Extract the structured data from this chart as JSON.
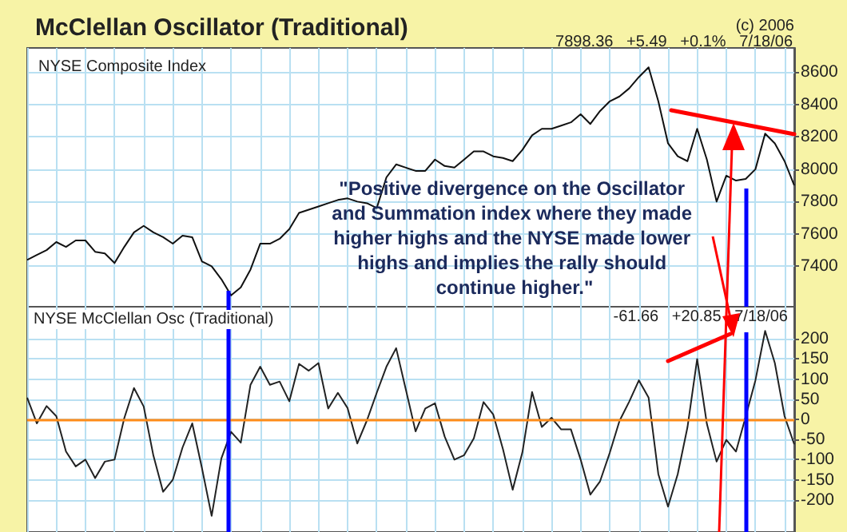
{
  "chart_data": [
    {
      "type": "line",
      "title": "McClellan Oscillator (Traditional)",
      "subtitle": "NYSE Composite Index",
      "annotations": [
        "(c) 2006",
        "7898.36   +5.49   +0.1%   7/18/06",
        "\"Positive divergence on the Oscillator and Summation index where they made higher highs and the NYSE made lower highs and implies the rally should continue higher.\""
      ],
      "categories": [
        null,
        null,
        null,
        null,
        null,
        null,
        null,
        null,
        null,
        null,
        null,
        null,
        null,
        null,
        null,
        null,
        null,
        null,
        null,
        null,
        null,
        null,
        null,
        null,
        null,
        null,
        null,
        null,
        null,
        null,
        null,
        null,
        null,
        null,
        null,
        null,
        null,
        null,
        null,
        null,
        null,
        null,
        null,
        null,
        null,
        null,
        null,
        null,
        null,
        null,
        null,
        null,
        null,
        null,
        null,
        null,
        null,
        null,
        null,
        null,
        null,
        null,
        null,
        null,
        null,
        null,
        null,
        null,
        null,
        null,
        null,
        null,
        null,
        null,
        null,
        null,
        null,
        null,
        null,
        null
      ],
      "series": [
        {
          "color": "#111111",
          "values": [
            7440,
            7470,
            7500,
            7550,
            7520,
            7560,
            7560,
            7490,
            7480,
            7420,
            7520,
            7610,
            7650,
            7610,
            7580,
            7540,
            7590,
            7580,
            7430,
            7400,
            7320,
            7220,
            7270,
            7380,
            7540,
            7540,
            7570,
            7630,
            7730,
            7750,
            7770,
            7790,
            7810,
            7820,
            7800,
            7790,
            7760,
            7950,
            8030,
            8010,
            7990,
            7990,
            8060,
            8020,
            8010,
            8060,
            8110,
            8110,
            8080,
            8070,
            8050,
            8120,
            8210,
            8250,
            8250,
            8270,
            8290,
            8340,
            8280,
            8360,
            8420,
            8450,
            8500,
            8570,
            8630,
            8420,
            8160,
            8080,
            8050,
            8250,
            8060,
            7800,
            7960,
            7930,
            7940,
            8000,
            8220,
            8160,
            8050,
            7900
          ]
        }
      ],
      "ylim": [
        7150,
        8750
      ],
      "yticks": [
        7400,
        7600,
        7800,
        8000,
        8200,
        8400,
        8600
      ],
      "tick_labels": "y",
      "grid": true
    },
    {
      "type": "line",
      "title": "NYSE McClellan Osc (Traditional)",
      "annotations": [
        "-61.66   +20.85   7/18/06"
      ],
      "categories": [
        null,
        null,
        null,
        null,
        null,
        null,
        null,
        null,
        null,
        null,
        null,
        null,
        null,
        null,
        null,
        null,
        null,
        null,
        null,
        null,
        null,
        null,
        null,
        null,
        null,
        null,
        null,
        null,
        null,
        null,
        null,
        null,
        null,
        null,
        null,
        null,
        null,
        null,
        null,
        null,
        null,
        null,
        null,
        null,
        null,
        null,
        null,
        null,
        null,
        null,
        null,
        null,
        null,
        null,
        null,
        null,
        null,
        null,
        null,
        null,
        null,
        null,
        null,
        null,
        null,
        null,
        null,
        null,
        null,
        null,
        null,
        null,
        null,
        null,
        null,
        null,
        null,
        null,
        null,
        null
      ],
      "series": [
        {
          "color": "#222222",
          "values": [
            54,
            -10,
            33,
            8,
            -80,
            -117,
            -100,
            -146,
            -105,
            -100,
            3,
            78,
            32,
            -90,
            -180,
            -150,
            -70,
            -10,
            -121,
            -240,
            -97,
            -31,
            -58,
            86,
            131,
            86,
            94,
            45,
            138,
            121,
            140,
            27,
            66,
            28,
            -60,
            -2,
            66,
            131,
            177,
            74,
            -30,
            27,
            40,
            -43,
            -100,
            -89,
            -47,
            43,
            12,
            -74,
            -175,
            -82,
            68,
            -19,
            4,
            -25,
            -25,
            -100,
            -187,
            -154,
            -83,
            -4,
            44,
            97,
            54,
            -136,
            -217,
            -136,
            -20,
            150,
            -11,
            -105,
            -51,
            -80,
            7,
            97,
            220,
            140,
            8,
            -62
          ]
        }
      ],
      "ylim": [
        -280,
        280
      ],
      "yticks": [
        -200,
        -150,
        -100,
        -50,
        0,
        50,
        100,
        150,
        200
      ],
      "ref_lines": [
        {
          "axis": "y",
          "value": 0,
          "color": "#ff8c1a"
        }
      ],
      "tick_labels": "y",
      "grid": true
    }
  ]
}
